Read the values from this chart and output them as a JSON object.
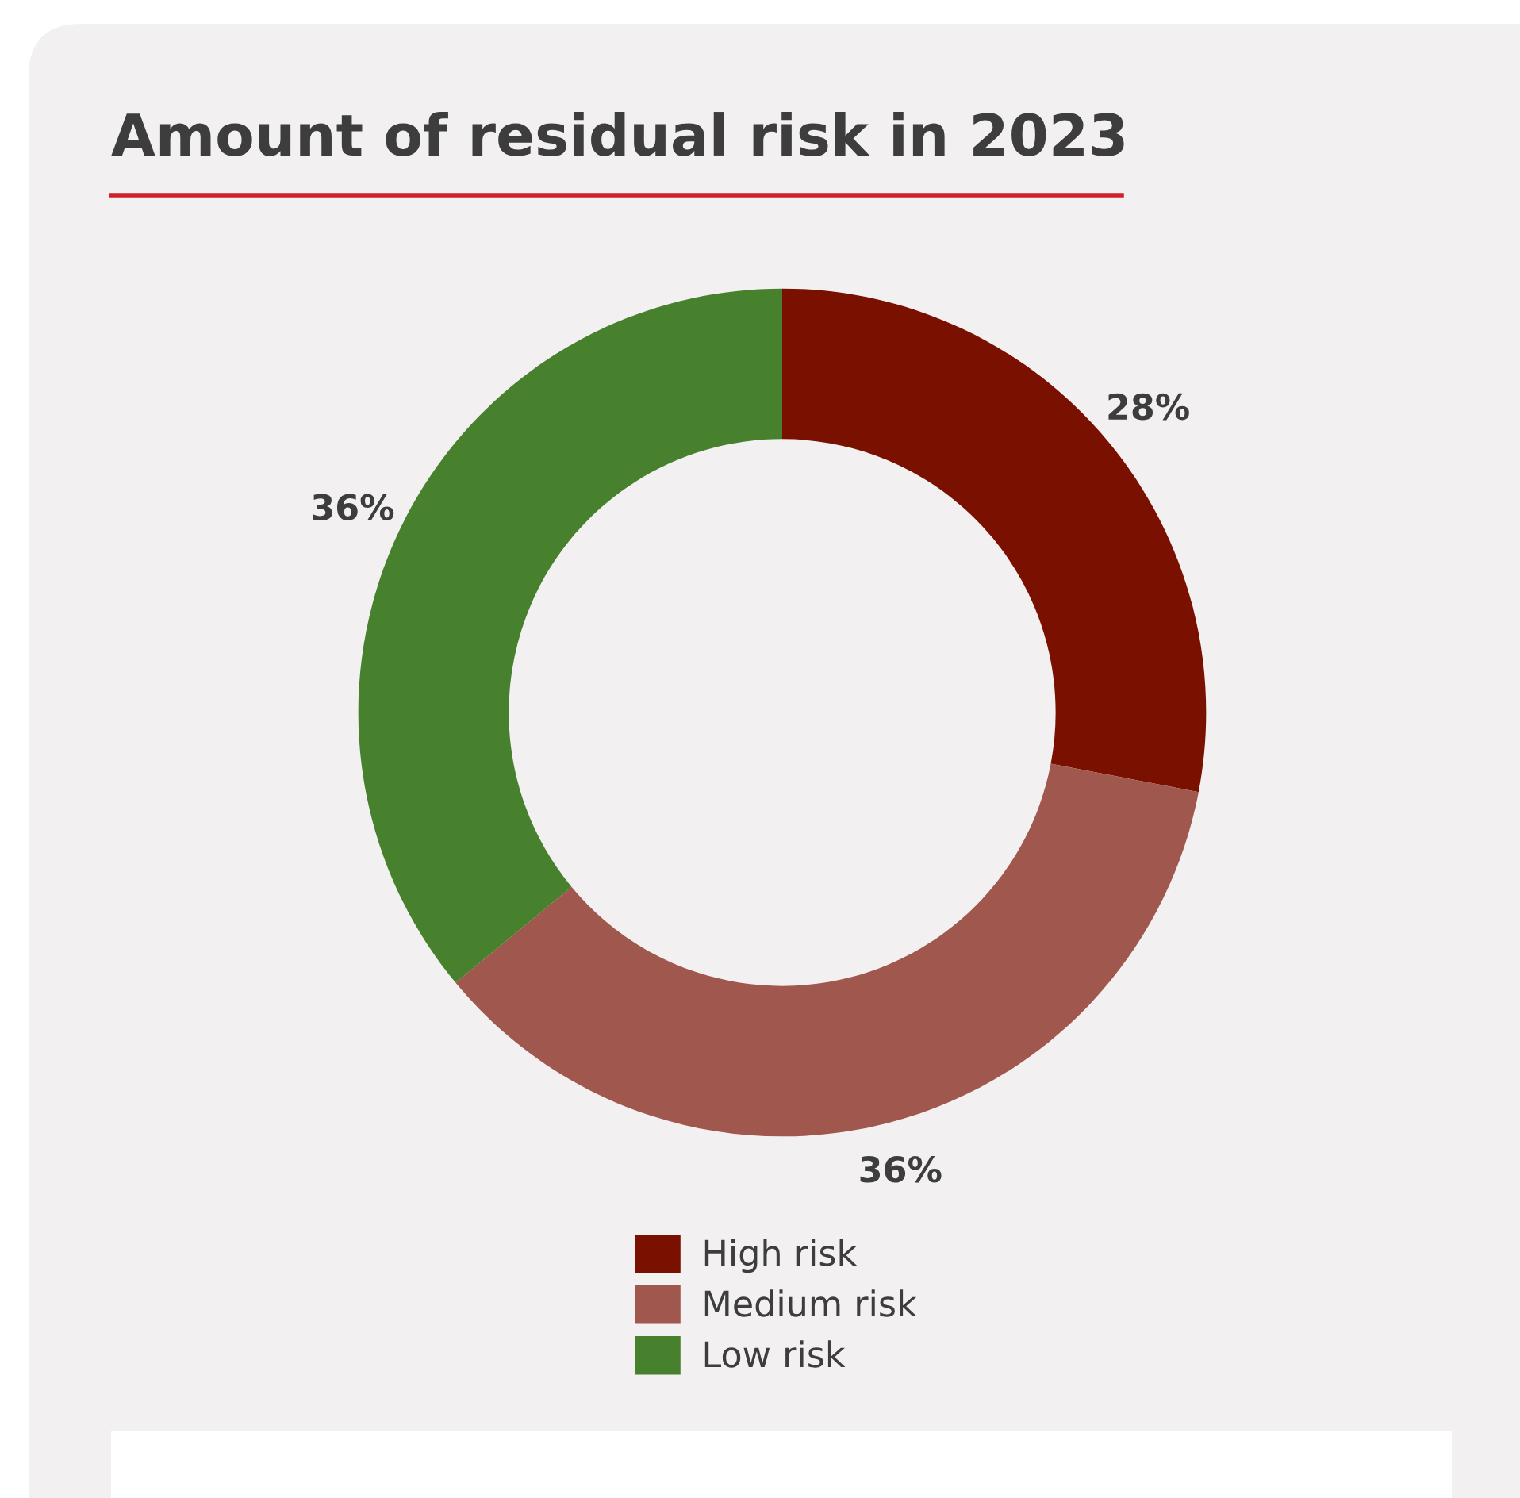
{
  "chart_data": {
    "type": "donut",
    "title": "Amount of residual risk in 2023",
    "categories": [
      "High risk",
      "Medium risk",
      "Low risk"
    ],
    "values": [
      28,
      36,
      36
    ],
    "colors": [
      "#7a1000",
      "#a0574d",
      "#47812e"
    ],
    "value_labels": [
      "28%",
      "36%",
      "36%"
    ],
    "legend": "bottom"
  }
}
